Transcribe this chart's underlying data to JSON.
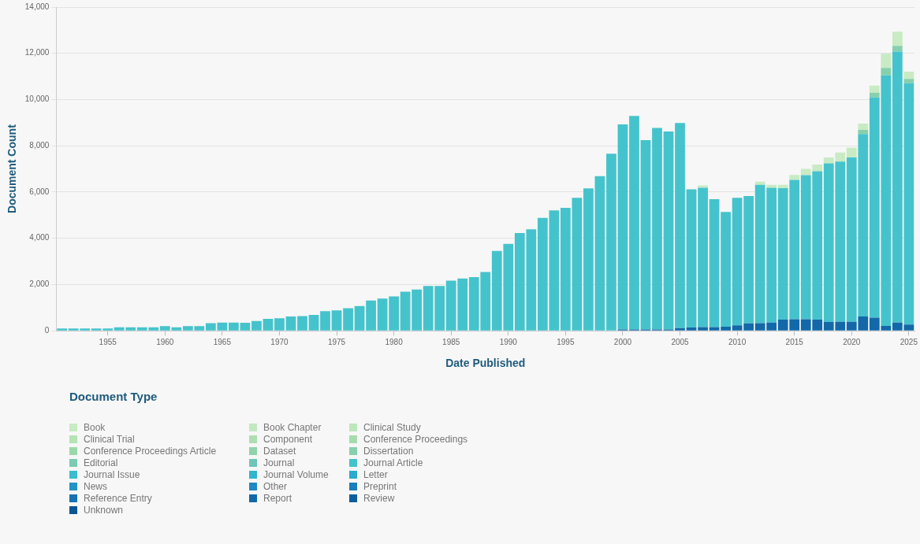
{
  "chart_data": {
    "type": "bar",
    "xlabel": "Date Published",
    "ylabel": "Document Count",
    "legend_title": "Document Type",
    "stacked": true,
    "grid": "y",
    "legend": "bottom",
    "x": [
      1951,
      1952,
      1953,
      1954,
      1955,
      1956,
      1957,
      1958,
      1959,
      1960,
      1961,
      1962,
      1963,
      1964,
      1965,
      1966,
      1967,
      1968,
      1969,
      1970,
      1971,
      1972,
      1973,
      1974,
      1975,
      1976,
      1977,
      1978,
      1979,
      1980,
      1981,
      1982,
      1983,
      1984,
      1985,
      1986,
      1987,
      1988,
      1989,
      1990,
      1991,
      1992,
      1993,
      1994,
      1995,
      1996,
      1997,
      1998,
      1999,
      2000,
      2001,
      2002,
      2003,
      2004,
      2005,
      2006,
      2007,
      2008,
      2009,
      2010,
      2011,
      2012,
      2013,
      2014,
      2015,
      2016,
      2017,
      2018,
      2019,
      2020,
      2021,
      2022,
      2023,
      2024,
      2025
    ],
    "xlim": [
      1950.5,
      2025.5
    ],
    "xticks": [
      1955,
      1960,
      1965,
      1970,
      1975,
      1980,
      1985,
      1990,
      1995,
      2000,
      2005,
      2010,
      2015,
      2020,
      2025
    ],
    "ylim": [
      0,
      14000
    ],
    "yticks": [
      {
        "value": 0,
        "label": "0"
      },
      {
        "value": 2000,
        "label": "2,000"
      },
      {
        "value": 4000,
        "label": "4,000"
      },
      {
        "value": 6000,
        "label": "6,000"
      },
      {
        "value": 8000,
        "label": "8,000"
      },
      {
        "value": 10000,
        "label": "10,000"
      },
      {
        "value": 12000,
        "label": "12,000"
      },
      {
        "value": 14000,
        "label": "14,000"
      }
    ],
    "series": [
      {
        "name": "Unknown",
        "color": "#0a5595",
        "values": [
          null,
          null,
          null,
          null,
          null,
          null,
          null,
          null,
          null,
          null,
          null,
          null,
          null,
          null,
          null,
          null,
          null,
          null,
          null,
          null,
          null,
          null,
          null,
          null,
          null,
          null,
          null,
          null,
          null,
          null,
          null,
          null,
          null,
          null,
          null,
          null,
          null,
          null,
          null,
          null,
          null,
          null,
          null,
          null,
          null,
          null,
          null,
          null,
          null,
          null,
          null,
          null,
          null,
          null,
          null,
          null,
          null,
          null,
          null,
          null,
          null,
          null,
          null,
          null,
          null,
          null,
          null,
          null,
          null,
          null,
          null,
          null,
          null,
          null,
          null
        ]
      },
      {
        "name": "Review",
        "color": "#0e5e9e",
        "values": [
          null,
          null,
          null,
          null,
          null,
          null,
          null,
          null,
          null,
          null,
          null,
          null,
          null,
          null,
          null,
          null,
          null,
          null,
          null,
          null,
          null,
          null,
          null,
          null,
          null,
          null,
          null,
          null,
          null,
          null,
          null,
          null,
          null,
          null,
          null,
          null,
          null,
          null,
          null,
          null,
          null,
          null,
          null,
          null,
          null,
          null,
          null,
          null,
          null,
          null,
          null,
          null,
          null,
          null,
          null,
          null,
          null,
          null,
          null,
          null,
          null,
          null,
          null,
          null,
          null,
          null,
          null,
          null,
          null,
          null,
          null,
          null,
          null,
          null,
          null
        ]
      },
      {
        "name": "Report",
        "color": "#1268a8",
        "values": [
          null,
          null,
          null,
          null,
          null,
          null,
          null,
          null,
          null,
          null,
          null,
          null,
          null,
          null,
          null,
          null,
          null,
          null,
          null,
          null,
          null,
          null,
          null,
          null,
          null,
          null,
          null,
          null,
          null,
          null,
          null,
          null,
          null,
          null,
          null,
          null,
          null,
          null,
          null,
          null,
          null,
          null,
          null,
          null,
          null,
          null,
          null,
          null,
          null,
          60,
          60,
          60,
          60,
          60,
          120,
          140,
          160,
          160,
          180,
          240,
          320,
          330,
          360,
          480,
          500,
          500,
          480,
          380,
          390,
          390,
          620,
          570,
          210,
          360,
          270
        ]
      },
      {
        "name": "Reference Entry",
        "color": "#1672b0",
        "values": [
          null,
          null,
          null,
          null,
          null,
          null,
          null,
          null,
          null,
          null,
          null,
          null,
          null,
          null,
          null,
          null,
          null,
          null,
          null,
          null,
          null,
          null,
          null,
          null,
          null,
          null,
          null,
          null,
          null,
          null,
          null,
          null,
          null,
          null,
          null,
          null,
          null,
          null,
          null,
          null,
          null,
          null,
          null,
          null,
          null,
          null,
          null,
          null,
          null,
          null,
          null,
          null,
          null,
          null,
          null,
          null,
          null,
          null,
          null,
          null,
          null,
          null,
          null,
          null,
          null,
          null,
          null,
          null,
          null,
          null,
          null,
          null,
          null,
          null,
          null
        ]
      },
      {
        "name": "Preprint",
        "color": "#1a7eb9",
        "values": [
          null,
          null,
          null,
          null,
          null,
          null,
          null,
          null,
          null,
          null,
          null,
          null,
          null,
          null,
          null,
          null,
          null,
          null,
          null,
          null,
          null,
          null,
          null,
          null,
          null,
          null,
          null,
          null,
          null,
          null,
          null,
          null,
          null,
          null,
          null,
          null,
          null,
          null,
          null,
          null,
          null,
          null,
          null,
          null,
          null,
          null,
          null,
          null,
          null,
          null,
          null,
          null,
          null,
          null,
          null,
          null,
          null,
          null,
          null,
          null,
          null,
          null,
          null,
          null,
          null,
          null,
          null,
          null,
          null,
          null,
          null,
          null,
          null,
          null,
          null
        ]
      },
      {
        "name": "Other",
        "color": "#1e88c0",
        "values": [
          null,
          null,
          null,
          null,
          null,
          null,
          null,
          null,
          null,
          null,
          null,
          null,
          null,
          null,
          null,
          null,
          null,
          null,
          null,
          null,
          null,
          null,
          null,
          null,
          null,
          null,
          null,
          null,
          null,
          null,
          null,
          null,
          null,
          null,
          null,
          null,
          null,
          null,
          null,
          null,
          null,
          null,
          null,
          null,
          null,
          null,
          null,
          null,
          null,
          null,
          null,
          null,
          null,
          null,
          null,
          null,
          null,
          null,
          null,
          null,
          null,
          null,
          null,
          null,
          null,
          null,
          null,
          null,
          null,
          null,
          null,
          null,
          null,
          null,
          null
        ]
      },
      {
        "name": "News",
        "color": "#2293c7",
        "values": [
          null,
          null,
          null,
          null,
          null,
          null,
          null,
          null,
          null,
          null,
          null,
          null,
          null,
          null,
          null,
          null,
          null,
          null,
          null,
          null,
          null,
          null,
          null,
          null,
          null,
          null,
          null,
          null,
          null,
          null,
          null,
          null,
          null,
          null,
          null,
          null,
          null,
          null,
          null,
          null,
          null,
          null,
          null,
          null,
          null,
          null,
          null,
          null,
          null,
          null,
          null,
          null,
          null,
          null,
          null,
          null,
          null,
          null,
          null,
          null,
          null,
          null,
          null,
          null,
          null,
          null,
          null,
          null,
          null,
          null,
          null,
          null,
          null,
          null,
          null
        ]
      },
      {
        "name": "Letter",
        "color": "#2aaad0",
        "values": [
          null,
          null,
          null,
          null,
          null,
          null,
          null,
          null,
          null,
          null,
          null,
          null,
          null,
          null,
          null,
          null,
          null,
          null,
          null,
          null,
          null,
          null,
          null,
          null,
          null,
          null,
          null,
          null,
          null,
          null,
          null,
          null,
          null,
          null,
          null,
          null,
          null,
          null,
          null,
          null,
          null,
          null,
          null,
          null,
          null,
          null,
          null,
          null,
          null,
          null,
          null,
          null,
          null,
          null,
          null,
          null,
          null,
          null,
          null,
          null,
          null,
          null,
          null,
          null,
          null,
          null,
          null,
          null,
          null,
          null,
          null,
          null,
          null,
          null,
          null
        ]
      },
      {
        "name": "Journal Volume",
        "color": "#33b4cf",
        "values": [
          null,
          null,
          null,
          null,
          null,
          null,
          null,
          null,
          null,
          null,
          null,
          null,
          null,
          null,
          null,
          null,
          null,
          null,
          null,
          null,
          null,
          null,
          null,
          null,
          null,
          null,
          null,
          null,
          null,
          null,
          null,
          null,
          null,
          null,
          null,
          null,
          null,
          null,
          null,
          null,
          null,
          null,
          null,
          null,
          null,
          null,
          null,
          null,
          null,
          null,
          null,
          null,
          null,
          null,
          null,
          null,
          null,
          null,
          null,
          null,
          null,
          null,
          null,
          null,
          null,
          null,
          null,
          null,
          null,
          null,
          null,
          null,
          null,
          null,
          null
        ]
      },
      {
        "name": "Journal Issue",
        "color": "#3bbcd0",
        "values": [
          null,
          null,
          null,
          null,
          null,
          null,
          null,
          null,
          null,
          null,
          null,
          null,
          null,
          null,
          null,
          null,
          null,
          null,
          null,
          null,
          null,
          null,
          null,
          null,
          null,
          null,
          null,
          null,
          null,
          null,
          null,
          null,
          null,
          null,
          null,
          null,
          null,
          null,
          null,
          null,
          null,
          null,
          null,
          null,
          null,
          null,
          null,
          null,
          null,
          null,
          null,
          null,
          null,
          null,
          null,
          null,
          null,
          null,
          null,
          null,
          null,
          null,
          null,
          null,
          null,
          null,
          null,
          null,
          null,
          null,
          null,
          null,
          null,
          null,
          null
        ]
      },
      {
        "name": "Journal Article",
        "color": "#45c3cc",
        "values": [
          100,
          100,
          100,
          100,
          100,
          150,
          150,
          150,
          150,
          200,
          150,
          200,
          200,
          330,
          360,
          360,
          350,
          420,
          520,
          540,
          620,
          640,
          690,
          850,
          880,
          980,
          1070,
          1310,
          1390,
          1490,
          1690,
          1790,
          1940,
          1940,
          2170,
          2260,
          2320,
          2540,
          3450,
          3760,
          4230,
          4390,
          4880,
          5210,
          5320,
          5750,
          6160,
          6690,
          7660,
          8870,
          9230,
          8190,
          8710,
          8560,
          8870,
          5980,
          6030,
          5530,
          4960,
          5510,
          5510,
          5980,
          5830,
          5690,
          6030,
          6230,
          6420,
          6860,
          6930,
          7110,
          7890,
          9520,
          10840,
          11720,
          10440
        ]
      },
      {
        "name": "Journal",
        "color": "#6fc6b8",
        "values": [
          null,
          null,
          null,
          null,
          null,
          null,
          null,
          null,
          null,
          null,
          null,
          null,
          null,
          null,
          null,
          null,
          null,
          null,
          null,
          null,
          null,
          null,
          null,
          null,
          null,
          null,
          null,
          null,
          null,
          null,
          null,
          null,
          null,
          null,
          null,
          null,
          null,
          null,
          null,
          null,
          null,
          null,
          null,
          null,
          null,
          null,
          null,
          null,
          null,
          null,
          null,
          null,
          null,
          null,
          null,
          null,
          null,
          null,
          null,
          null,
          null,
          null,
          null,
          null,
          null,
          null,
          null,
          null,
          null,
          null,
          null,
          null,
          null,
          null,
          null
        ]
      },
      {
        "name": "Editorial",
        "color": "#7ccbb2",
        "values": [
          null,
          null,
          null,
          null,
          null,
          null,
          null,
          null,
          null,
          null,
          null,
          null,
          null,
          null,
          null,
          null,
          null,
          null,
          null,
          null,
          null,
          null,
          null,
          null,
          null,
          null,
          null,
          null,
          null,
          null,
          null,
          null,
          null,
          null,
          null,
          null,
          null,
          null,
          null,
          null,
          null,
          null,
          null,
          null,
          null,
          null,
          null,
          null,
          null,
          null,
          null,
          null,
          null,
          null,
          null,
          null,
          null,
          null,
          null,
          null,
          null,
          null,
          null,
          null,
          null,
          null,
          null,
          null,
          null,
          null,
          null,
          null,
          null,
          null,
          null
        ]
      },
      {
        "name": "Dissertation",
        "color": "#86d0ad",
        "values": [
          null,
          null,
          null,
          null,
          null,
          null,
          null,
          null,
          null,
          null,
          null,
          null,
          null,
          null,
          null,
          null,
          null,
          null,
          null,
          null,
          null,
          null,
          null,
          null,
          null,
          null,
          null,
          null,
          null,
          null,
          null,
          null,
          null,
          null,
          null,
          null,
          null,
          null,
          null,
          null,
          null,
          null,
          null,
          null,
          null,
          null,
          null,
          null,
          null,
          null,
          null,
          null,
          null,
          null,
          null,
          null,
          null,
          null,
          null,
          null,
          null,
          null,
          null,
          null,
          null,
          null,
          null,
          null,
          null,
          null,
          180,
          210,
          320,
          240,
          180
        ]
      },
      {
        "name": "Dataset",
        "color": "#90d4ab",
        "values": [
          null,
          null,
          null,
          null,
          null,
          null,
          null,
          null,
          null,
          null,
          null,
          null,
          null,
          null,
          null,
          null,
          null,
          null,
          null,
          null,
          null,
          null,
          null,
          null,
          null,
          null,
          null,
          null,
          null,
          null,
          null,
          null,
          null,
          null,
          null,
          null,
          null,
          null,
          null,
          null,
          null,
          null,
          null,
          null,
          null,
          null,
          null,
          null,
          null,
          null,
          null,
          null,
          null,
          null,
          null,
          null,
          null,
          null,
          null,
          null,
          null,
          null,
          null,
          null,
          null,
          null,
          null,
          null,
          null,
          null,
          null,
          null,
          null,
          null,
          null
        ]
      },
      {
        "name": "Conference Proceedings Article",
        "color": "#9ad8aa",
        "values": [
          null,
          null,
          null,
          null,
          null,
          null,
          null,
          null,
          null,
          null,
          null,
          null,
          null,
          null,
          null,
          null,
          null,
          null,
          null,
          null,
          null,
          null,
          null,
          null,
          null,
          null,
          null,
          null,
          null,
          null,
          null,
          null,
          null,
          null,
          null,
          null,
          null,
          null,
          null,
          null,
          null,
          null,
          null,
          null,
          null,
          null,
          null,
          null,
          null,
          null,
          null,
          null,
          null,
          null,
          null,
          null,
          null,
          null,
          null,
          null,
          null,
          null,
          null,
          null,
          null,
          null,
          null,
          null,
          null,
          null,
          null,
          null,
          null,
          null,
          null
        ]
      },
      {
        "name": "Conference Proceedings",
        "color": "#a5dcac",
        "values": [
          null,
          null,
          null,
          null,
          null,
          null,
          null,
          null,
          null,
          null,
          null,
          null,
          null,
          null,
          null,
          null,
          null,
          null,
          null,
          null,
          null,
          null,
          null,
          null,
          null,
          null,
          null,
          null,
          null,
          null,
          null,
          null,
          null,
          null,
          null,
          null,
          null,
          null,
          null,
          null,
          null,
          null,
          null,
          null,
          null,
          null,
          null,
          null,
          null,
          null,
          null,
          null,
          null,
          null,
          null,
          null,
          null,
          null,
          null,
          null,
          null,
          null,
          null,
          null,
          null,
          null,
          null,
          null,
          null,
          null,
          null,
          null,
          null,
          null,
          null
        ]
      },
      {
        "name": "Component",
        "color": "#addfb0",
        "values": [
          null,
          null,
          null,
          null,
          null,
          null,
          null,
          null,
          null,
          null,
          null,
          null,
          null,
          null,
          null,
          null,
          null,
          null,
          null,
          null,
          null,
          null,
          null,
          null,
          null,
          null,
          null,
          null,
          null,
          null,
          null,
          null,
          null,
          null,
          null,
          null,
          null,
          null,
          null,
          null,
          null,
          null,
          null,
          null,
          null,
          null,
          null,
          null,
          null,
          null,
          null,
          null,
          null,
          null,
          null,
          null,
          null,
          null,
          null,
          null,
          null,
          null,
          null,
          null,
          null,
          null,
          null,
          null,
          null,
          null,
          null,
          null,
          null,
          null,
          null
        ]
      },
      {
        "name": "Clinical Trial",
        "color": "#b5e3b5",
        "values": [
          null,
          null,
          null,
          null,
          null,
          null,
          null,
          null,
          null,
          null,
          null,
          null,
          null,
          null,
          null,
          null,
          null,
          null,
          null,
          null,
          null,
          null,
          null,
          null,
          null,
          null,
          null,
          null,
          null,
          null,
          null,
          null,
          null,
          null,
          null,
          null,
          null,
          null,
          null,
          null,
          null,
          null,
          null,
          null,
          null,
          null,
          null,
          null,
          null,
          null,
          null,
          null,
          null,
          null,
          null,
          null,
          null,
          null,
          null,
          null,
          null,
          null,
          null,
          null,
          null,
          null,
          null,
          null,
          null,
          null,
          null,
          null,
          null,
          null,
          null
        ]
      },
      {
        "name": "Clinical Study",
        "color": "#bde6bb",
        "values": [
          null,
          null,
          null,
          null,
          null,
          null,
          null,
          null,
          null,
          null,
          null,
          null,
          null,
          null,
          null,
          null,
          null,
          null,
          null,
          null,
          null,
          null,
          null,
          null,
          null,
          null,
          null,
          null,
          null,
          null,
          null,
          null,
          null,
          null,
          null,
          null,
          null,
          null,
          null,
          null,
          null,
          null,
          null,
          null,
          null,
          null,
          null,
          null,
          null,
          null,
          null,
          null,
          null,
          null,
          null,
          null,
          null,
          null,
          null,
          null,
          null,
          null,
          null,
          null,
          null,
          null,
          null,
          null,
          null,
          null,
          null,
          null,
          null,
          null,
          null
        ]
      },
      {
        "name": "Book Chapter",
        "color": "#c3e8c0",
        "values": [
          null,
          null,
          null,
          null,
          null,
          null,
          null,
          null,
          null,
          null,
          null,
          null,
          null,
          null,
          null,
          null,
          null,
          null,
          null,
          null,
          null,
          null,
          null,
          null,
          null,
          null,
          null,
          null,
          null,
          null,
          null,
          null,
          null,
          null,
          null,
          null,
          null,
          null,
          null,
          null,
          null,
          null,
          null,
          null,
          null,
          null,
          null,
          null,
          null,
          null,
          null,
          null,
          null,
          null,
          null,
          null,
          null,
          null,
          null,
          null,
          null,
          null,
          null,
          null,
          null,
          null,
          null,
          null,
          null,
          null,
          null,
          null,
          null,
          null,
          null
        ]
      },
      {
        "name": "Book",
        "color": "#c8ebc4",
        "values": [
          null,
          null,
          null,
          null,
          null,
          null,
          null,
          null,
          null,
          null,
          null,
          null,
          null,
          null,
          null,
          null,
          null,
          null,
          null,
          null,
          null,
          null,
          null,
          null,
          null,
          null,
          null,
          null,
          null,
          null,
          null,
          null,
          null,
          null,
          null,
          null,
          null,
          null,
          null,
          null,
          null,
          null,
          null,
          null,
          null,
          null,
          null,
          null,
          null,
          null,
          null,
          null,
          null,
          null,
          null,
          null,
          100,
          null,
          null,
          null,
          null,
          140,
          120,
          140,
          210,
          270,
          290,
          260,
          390,
          420,
          270,
          300,
          620,
          620,
          320
        ]
      }
    ]
  }
}
